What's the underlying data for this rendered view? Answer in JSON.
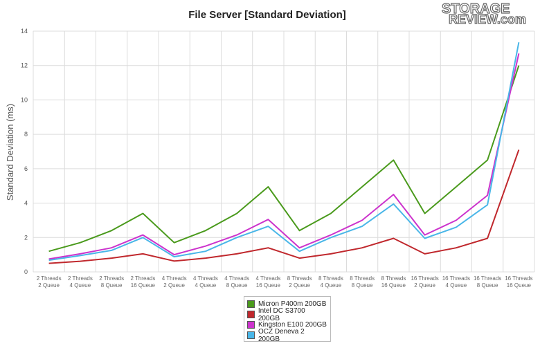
{
  "logo": {
    "line1": "STORAGE",
    "line2": "REVIEW.com"
  },
  "chart_data": {
    "type": "line",
    "title": "File Server [Standard Deviation]",
    "ylabel": "Standard Deviation (ms)",
    "xlabel": "",
    "ylim": [
      0,
      14
    ],
    "yticks": [
      0,
      2,
      4,
      6,
      8,
      10,
      12,
      14
    ],
    "grid": true,
    "legend_position": "bottom-center",
    "categories": [
      [
        "2 Threads",
        "2 Queue"
      ],
      [
        "2 Threads",
        "4 Queue"
      ],
      [
        "2 Threads",
        "8 Queue"
      ],
      [
        "2 Threads",
        "16 Queue"
      ],
      [
        "4 Threads",
        "2 Queue"
      ],
      [
        "4 Threads",
        "4 Queue"
      ],
      [
        "4 Threads",
        "8 Queue"
      ],
      [
        "4 Threads",
        "16 Queue"
      ],
      [
        "8 Threads",
        "2 Queue"
      ],
      [
        "8 Threads",
        "4 Queue"
      ],
      [
        "8 Threads",
        "8 Queue"
      ],
      [
        "8 Threads",
        "16 Queue"
      ],
      [
        "16 Threads",
        "2 Queue"
      ],
      [
        "16 Threads",
        "4 Queue"
      ],
      [
        "16 Threads",
        "8 Queue"
      ],
      [
        "16 Threads",
        "16 Queue"
      ]
    ],
    "series": [
      {
        "name": "Micron P400m 200GB",
        "color": "#4a9a1c",
        "values": [
          1.2,
          1.7,
          2.4,
          3.4,
          1.7,
          2.4,
          3.4,
          4.95,
          2.4,
          3.4,
          4.95,
          6.5,
          3.4,
          4.95,
          6.5,
          12.0
        ]
      },
      {
        "name": "Intel DC S3700 200GB",
        "color": "#c0282d",
        "values": [
          0.5,
          0.62,
          0.8,
          1.05,
          0.63,
          0.8,
          1.05,
          1.4,
          0.8,
          1.05,
          1.4,
          1.95,
          1.05,
          1.4,
          1.95,
          7.1
        ]
      },
      {
        "name": "Kingston E100 200GB",
        "color": "#cc33cc",
        "values": [
          0.75,
          1.05,
          1.4,
          2.15,
          1.0,
          1.5,
          2.15,
          3.05,
          1.4,
          2.15,
          3.0,
          4.5,
          2.15,
          3.0,
          4.45,
          12.7
        ]
      },
      {
        "name": "OCZ Deneva 2 200GB",
        "color": "#49b6e8",
        "values": [
          0.68,
          0.95,
          1.25,
          2.0,
          0.88,
          1.2,
          2.0,
          2.65,
          1.2,
          2.0,
          2.65,
          3.95,
          1.95,
          2.6,
          3.9,
          13.35
        ]
      }
    ]
  }
}
